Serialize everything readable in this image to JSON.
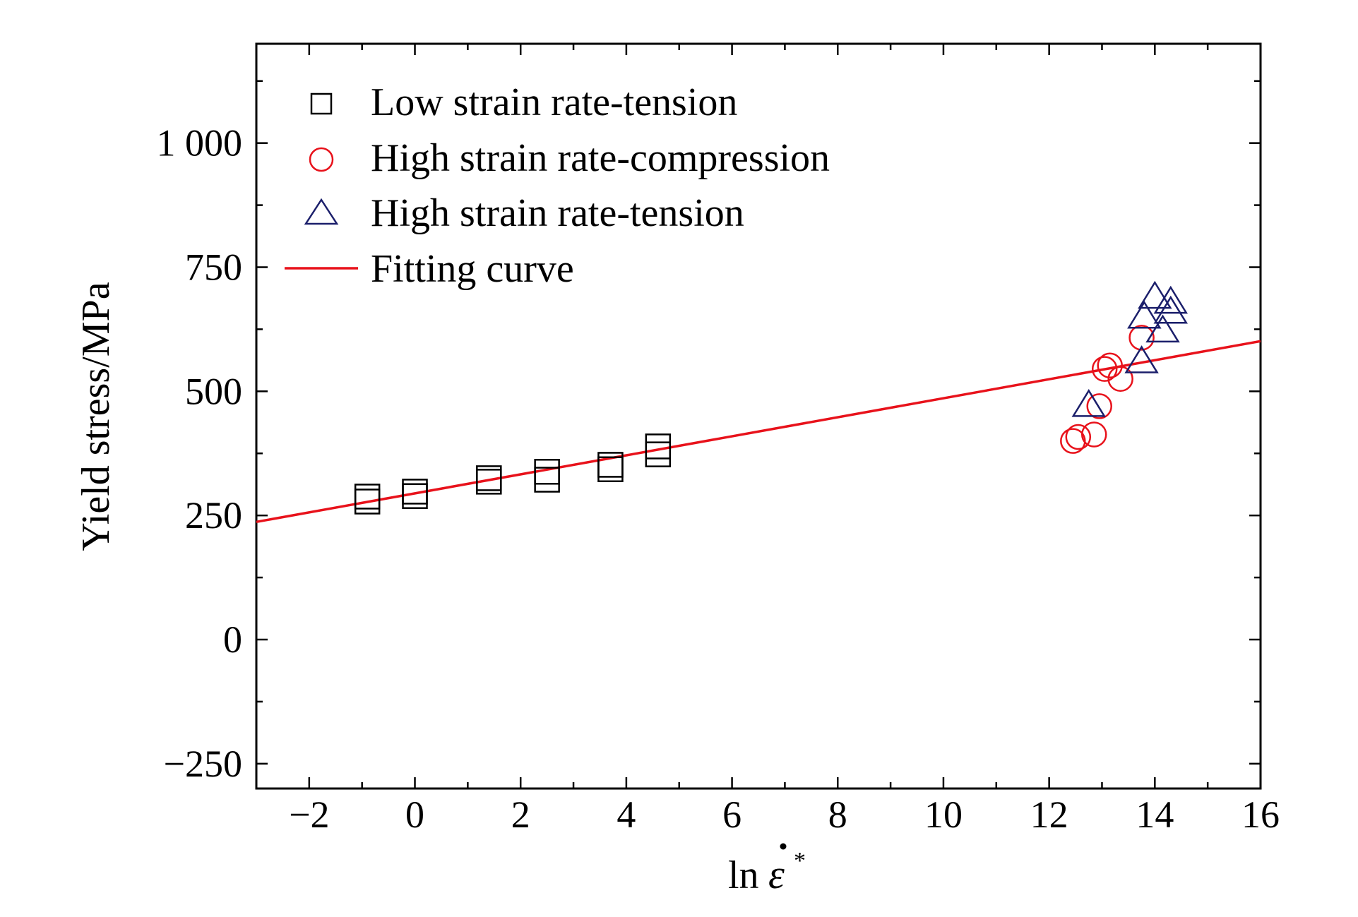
{
  "chart_data": {
    "type": "scatter",
    "title": "",
    "xlabel": "ln ε̇*",
    "xlabel_parts": {
      "prefix": "ln",
      "symbol": "ε",
      "superscript": "*"
    },
    "ylabel": "Yield stress/MPa",
    "xlim": [
      -3,
      16
    ],
    "ylim": [
      -300,
      1200
    ],
    "x_ticks": [
      -2,
      0,
      2,
      4,
      6,
      8,
      10,
      12,
      14,
      16
    ],
    "x_tick_labels": [
      "−2",
      "0",
      "2",
      "4",
      "6",
      "8",
      "10",
      "12",
      "14",
      "16"
    ],
    "y_ticks": [
      -250,
      0,
      250,
      500,
      750,
      1000
    ],
    "y_tick_labels": [
      "−250",
      "0",
      "250",
      "500",
      "750",
      "1 000"
    ],
    "grid": false,
    "legend_position": "top-left",
    "series": [
      {
        "name": "Low strain rate-tension",
        "marker": "square",
        "color": "#000000",
        "points": [
          {
            "x": -0.9,
            "y": 278
          },
          {
            "x": -0.9,
            "y": 288
          },
          {
            "x": 0.0,
            "y": 289
          },
          {
            "x": 0.0,
            "y": 298
          },
          {
            "x": 1.4,
            "y": 318
          },
          {
            "x": 1.4,
            "y": 325
          },
          {
            "x": 2.5,
            "y": 322
          },
          {
            "x": 2.5,
            "y": 338
          },
          {
            "x": 3.7,
            "y": 343
          },
          {
            "x": 3.7,
            "y": 352
          },
          {
            "x": 4.6,
            "y": 373
          },
          {
            "x": 4.6,
            "y": 389
          }
        ]
      },
      {
        "name": "High strain rate-compression",
        "marker": "circle",
        "color": "#e8121b",
        "points": [
          {
            "x": 12.45,
            "y": 400
          },
          {
            "x": 12.55,
            "y": 408
          },
          {
            "x": 12.85,
            "y": 413
          },
          {
            "x": 12.95,
            "y": 470
          },
          {
            "x": 13.05,
            "y": 545
          },
          {
            "x": 13.15,
            "y": 552
          },
          {
            "x": 13.35,
            "y": 525
          },
          {
            "x": 13.75,
            "y": 608
          }
        ]
      },
      {
        "name": "High strain rate-tension",
        "marker": "triangle",
        "color": "#1b1f6b",
        "points": [
          {
            "x": 12.75,
            "y": 470
          },
          {
            "x": 13.75,
            "y": 558
          },
          {
            "x": 13.8,
            "y": 648
          },
          {
            "x": 14.0,
            "y": 688
          },
          {
            "x": 14.15,
            "y": 620
          },
          {
            "x": 14.3,
            "y": 658
          },
          {
            "x": 14.3,
            "y": 678
          }
        ]
      }
    ],
    "fit_line": {
      "name": "Fitting curve",
      "color": "#e8121b",
      "x": [
        -3,
        16
      ],
      "y": [
        237,
        601
      ]
    }
  }
}
